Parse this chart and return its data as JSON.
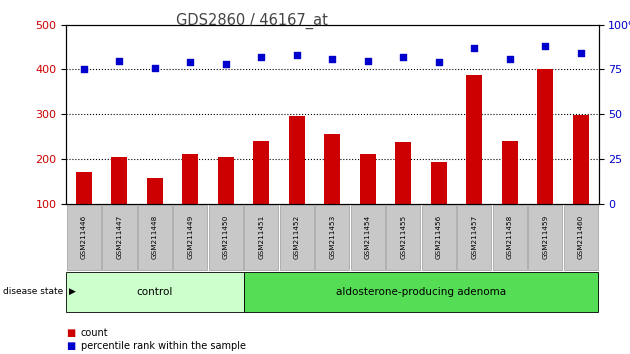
{
  "title": "GDS2860 / 46167_at",
  "samples": [
    "GSM211446",
    "GSM211447",
    "GSM211448",
    "GSM211449",
    "GSM211450",
    "GSM211451",
    "GSM211452",
    "GSM211453",
    "GSM211454",
    "GSM211455",
    "GSM211456",
    "GSM211457",
    "GSM211458",
    "GSM211459",
    "GSM211460"
  ],
  "counts": [
    170,
    205,
    158,
    210,
    205,
    240,
    295,
    255,
    210,
    238,
    192,
    388,
    240,
    402,
    298
  ],
  "percentiles": [
    75,
    80,
    76,
    79,
    78,
    82,
    83,
    81,
    80,
    82,
    79,
    87,
    81,
    88,
    84
  ],
  "groups": [
    {
      "label": "control",
      "start": 0,
      "end": 5,
      "color": "#ccffcc"
    },
    {
      "label": "aldosterone-producing adenoma",
      "start": 5,
      "end": 15,
      "color": "#55dd55"
    }
  ],
  "bar_color": "#cc0000",
  "dot_color": "#0000cc",
  "left_ylim": [
    100,
    500
  ],
  "left_yticks": [
    100,
    200,
    300,
    400,
    500
  ],
  "right_ylim": [
    0,
    100
  ],
  "right_yticks": [
    0,
    25,
    50,
    75,
    100
  ],
  "grid_values": [
    200,
    300,
    400
  ],
  "tick_label_color_left": "#cc0000",
  "tick_label_color_right": "#0000cc",
  "disease_state_label": "disease state",
  "legend_count": "count",
  "legend_percentile": "percentile rank within the sample"
}
